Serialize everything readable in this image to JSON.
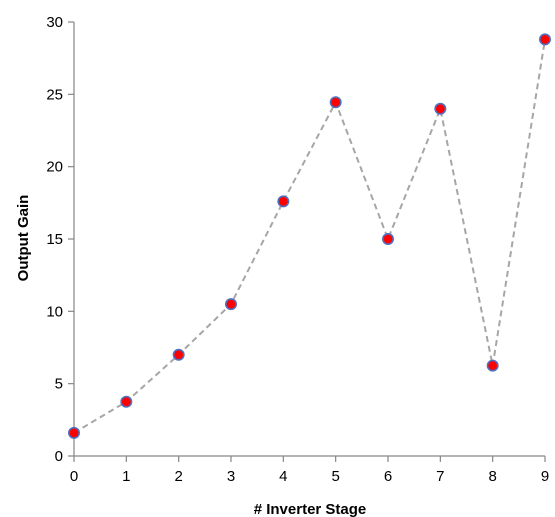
{
  "chart_data": {
    "type": "line",
    "title": "",
    "xlabel": "# Inverter Stage",
    "ylabel": "Output Gain",
    "x": [
      0,
      1,
      2,
      3,
      4,
      5,
      6,
      7,
      8,
      9
    ],
    "series": [
      {
        "values": [
          1.6,
          3.75,
          7.0,
          10.5,
          17.6,
          24.45,
          15.0,
          24.0,
          6.25,
          28.8
        ]
      }
    ],
    "xlim": [
      0,
      9
    ],
    "ylim": [
      0,
      30
    ],
    "xticks": [
      "0",
      "1",
      "2",
      "3",
      "4",
      "5",
      "6",
      "7",
      "8",
      "9"
    ],
    "yticks": [
      "0",
      "5",
      "10",
      "15",
      "20",
      "25",
      "30"
    ],
    "grid": false,
    "legend": "none",
    "line_style": "dashed",
    "colors": {
      "line": "#a6a6a6",
      "marker_fill": "#ff0000",
      "marker_edge": "#4f6fbf",
      "axis": "#868686"
    }
  }
}
